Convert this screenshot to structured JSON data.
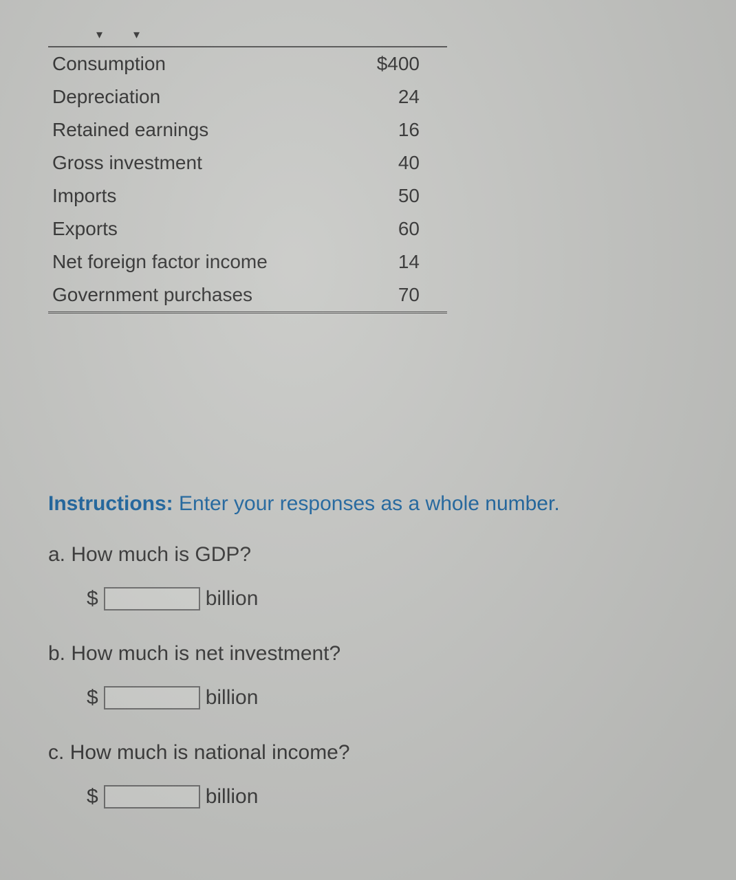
{
  "table": {
    "rows": [
      {
        "label": "Consumption",
        "value": "$400"
      },
      {
        "label": "Depreciation",
        "value": "24"
      },
      {
        "label": "Retained earnings",
        "value": "16"
      },
      {
        "label": "Gross investment",
        "value": "40"
      },
      {
        "label": "Imports",
        "value": "50"
      },
      {
        "label": "Exports",
        "value": "60"
      },
      {
        "label": "Net foreign factor income",
        "value": "14"
      },
      {
        "label": "Government purchases",
        "value": "70"
      }
    ],
    "column_align": [
      "left",
      "right"
    ],
    "border_color": "#555555",
    "font_size": 28
  },
  "instructions": {
    "label": "Instructions:",
    "text": "Enter your responses as a whole number.",
    "color": "#1e66a0"
  },
  "questions": [
    {
      "letter": "a.",
      "text": "How much is GDP?",
      "prefix": "$",
      "suffix": "billion",
      "value": ""
    },
    {
      "letter": "b.",
      "text": "How much is net investment?",
      "prefix": "$",
      "suffix": "billion",
      "value": ""
    },
    {
      "letter": "c.",
      "text": "How much is national income?",
      "prefix": "$",
      "suffix": "billion",
      "value": ""
    }
  ],
  "colors": {
    "background": "#c8c9c6",
    "text": "#3a3a3a",
    "link": "#1e66a0",
    "input_border": "#707070"
  }
}
